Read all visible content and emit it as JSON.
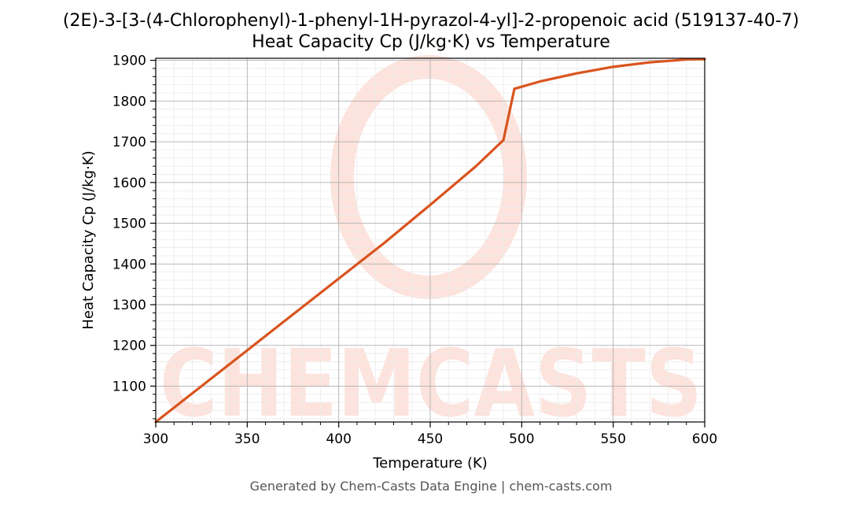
{
  "chart_data": {
    "type": "line",
    "title": "(2E)-3-[3-(4-Chlorophenyl)-1-phenyl-1H-pyrazol-4-yl]-2-propenoic acid (519137-40-7)",
    "subtitle": "Heat Capacity Cp (J/kg·K) vs Temperature",
    "xlabel": "Temperature (K)",
    "ylabel": "Heat Capacity Cp (J/kg·K)",
    "xlim": [
      300,
      600
    ],
    "ylim": [
      1012,
      1905
    ],
    "xticks": [
      300,
      350,
      400,
      450,
      500,
      550,
      600
    ],
    "yticks": [
      1100,
      1200,
      1300,
      1400,
      1500,
      1600,
      1700,
      1800,
      1900
    ],
    "grid": true,
    "series": [
      {
        "color": "#d9541e",
        "x": [
          300,
          325,
          350,
          375,
          400,
          425,
          450,
          475,
          490,
          496,
          510,
          530,
          550,
          570,
          590,
          600
        ],
        "y": [
          1012,
          1100,
          1188,
          1276,
          1364,
          1452,
          1545,
          1640,
          1704,
          1830,
          1848,
          1868,
          1884,
          1895,
          1902,
          1903
        ]
      }
    ],
    "watermark": "CHEMCASTS"
  },
  "footer": "Generated by Chem-Casts Data Engine | chem-casts.com"
}
